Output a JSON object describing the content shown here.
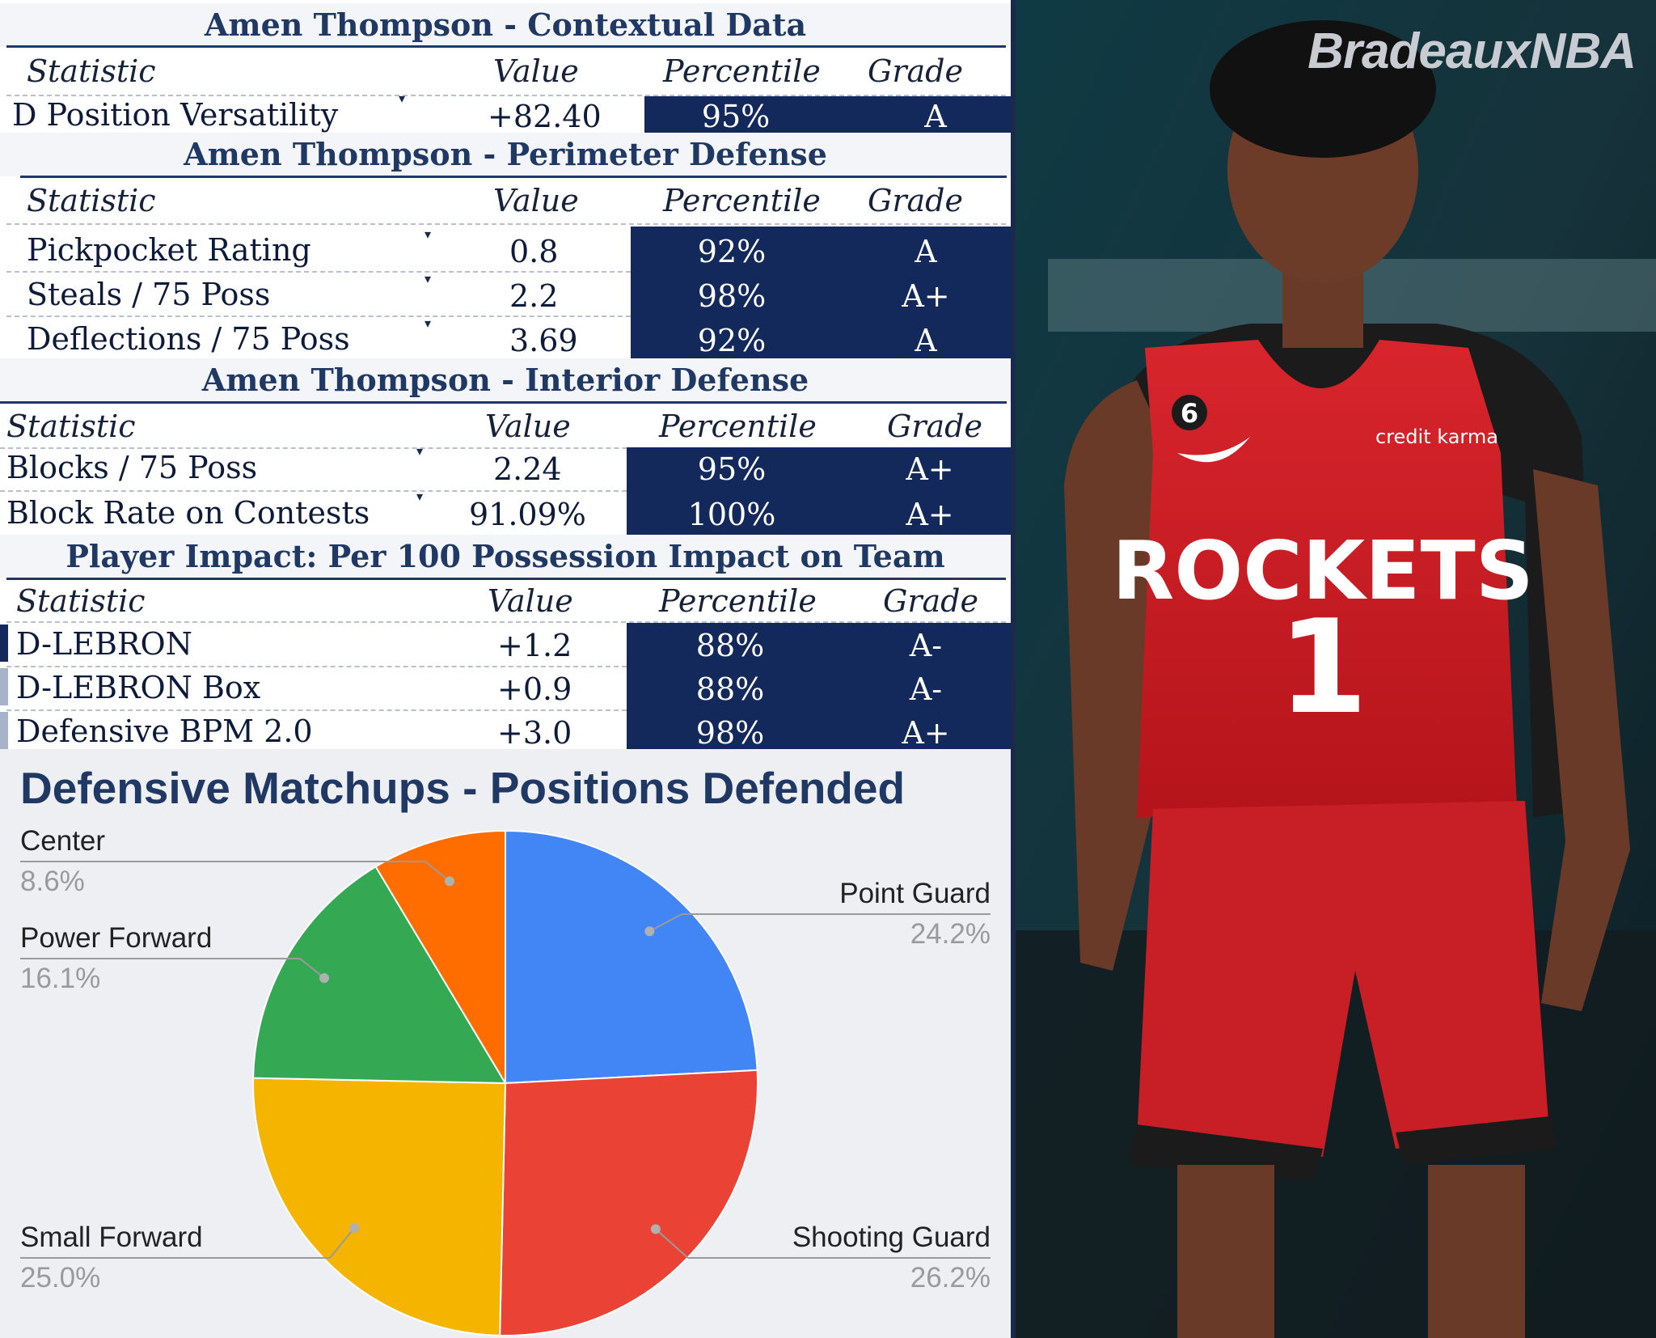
{
  "sections": {
    "contextual": {
      "title": "Amen Thompson - Contextual Data",
      "headers": [
        "Statistic",
        "Value",
        "Percentile",
        "Grade"
      ],
      "rows": [
        {
          "stat": "D Position Versatility",
          "value": "+82.40",
          "percentile": "95%",
          "grade": "A"
        }
      ]
    },
    "perimeter": {
      "title": "Amen Thompson - Perimeter Defense",
      "headers": [
        "Statistic",
        "Value",
        "Percentile",
        "Grade"
      ],
      "rows": [
        {
          "stat": "Pickpocket Rating",
          "value": "0.8",
          "percentile": "92%",
          "grade": "A"
        },
        {
          "stat": "Steals / 75 Poss",
          "value": "2.2",
          "percentile": "98%",
          "grade": "A+"
        },
        {
          "stat": "Deflections / 75 Poss",
          "value": "3.69",
          "percentile": "92%",
          "grade": "A"
        }
      ]
    },
    "interior": {
      "title": "Amen Thompson - Interior Defense",
      "headers": [
        "Statistic",
        "Value",
        "Percentile",
        "Grade"
      ],
      "rows": [
        {
          "stat": "Blocks / 75 Poss",
          "value": "2.24",
          "percentile": "95%",
          "grade": "A+"
        },
        {
          "stat": "Block Rate on Contests",
          "value": "91.09%",
          "percentile": "100%",
          "grade": "A+"
        }
      ]
    },
    "impact": {
      "title": "Player Impact: Per 100 Possession Impact on Team",
      "headers": [
        "Statistic",
        "Value",
        "Percentile",
        "Grade"
      ],
      "rows": [
        {
          "stat": "D-LEBRON",
          "value": "+1.2",
          "percentile": "88%",
          "grade": "A-"
        },
        {
          "stat": "D-LEBRON Box",
          "value": "+0.9",
          "percentile": "88%",
          "grade": "A-"
        },
        {
          "stat": "Defensive BPM 2.0",
          "value": "+3.0",
          "percentile": "98%",
          "grade": "A+"
        }
      ]
    }
  },
  "chart_data": {
    "type": "pie",
    "title": "Defensive Matchups - Positions Defended",
    "labels": [
      "Point Guard",
      "Shooting Guard",
      "Small Forward",
      "Power Forward",
      "Center"
    ],
    "values": [
      24.2,
      26.2,
      25.0,
      16.1,
      8.6
    ],
    "value_labels": [
      "24.2%",
      "26.2%",
      "25.0%",
      "16.1%",
      "8.6%"
    ],
    "colors": [
      "#4285f4",
      "#ea4335",
      "#f4b400",
      "#34a853",
      "#ff6d01"
    ]
  },
  "photo": {
    "watermark": "BradeauxNBA",
    "jersey_text": "ROCKETS",
    "jersey_number": "1",
    "patch_number": "6",
    "sponsor": "credit karma"
  }
}
